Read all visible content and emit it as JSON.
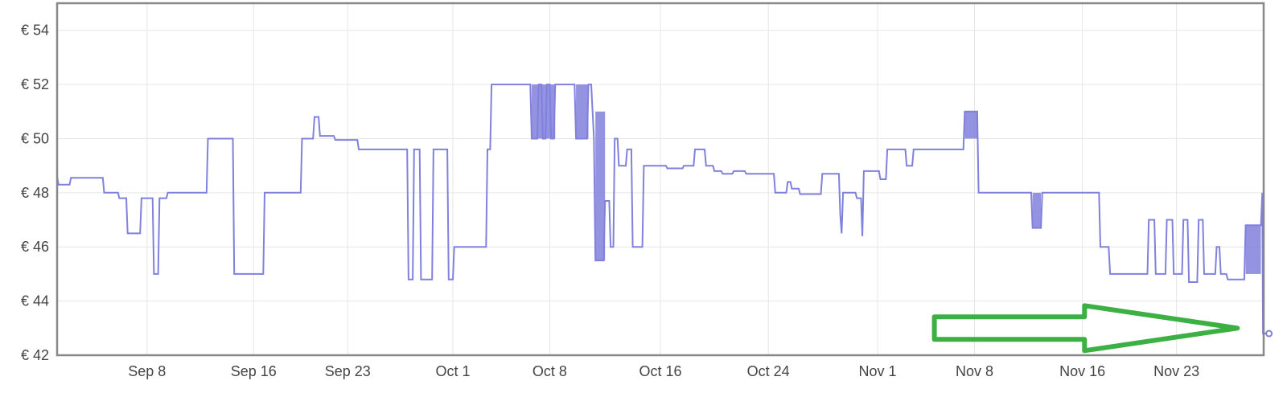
{
  "chart_data": {
    "type": "line",
    "title": "",
    "xlabel": "",
    "ylabel": "",
    "y_currency": "€",
    "ylim": [
      42,
      55
    ],
    "yticks": [
      42,
      44,
      46,
      48,
      50,
      52,
      54
    ],
    "xlim": [
      0,
      87.2
    ],
    "x_ticks": [
      {
        "day": 6.5,
        "label": "Sep 8"
      },
      {
        "day": 14.2,
        "label": "Sep 16"
      },
      {
        "day": 21.0,
        "label": "Sep 23"
      },
      {
        "day": 28.6,
        "label": "Oct 1"
      },
      {
        "day": 35.6,
        "label": "Oct 8"
      },
      {
        "day": 43.6,
        "label": "Oct 16"
      },
      {
        "day": 51.4,
        "label": "Oct 24"
      },
      {
        "day": 59.3,
        "label": "Nov 1"
      },
      {
        "day": 66.3,
        "label": "Nov 8"
      },
      {
        "day": 74.1,
        "label": "Nov 16"
      },
      {
        "day": 80.9,
        "label": "Nov 23"
      }
    ],
    "grid": true,
    "legend": "none",
    "line_color": "#8080dd",
    "annotation_color": "#3cb043",
    "annotation": {
      "shape": "arrow",
      "direction": "right",
      "from": [
        63.4,
        43.0
      ],
      "to": [
        85.3,
        43.0
      ]
    },
    "series": [
      {
        "steps": [
          [
            0.0,
            48.6
          ],
          [
            0.1,
            48.3
          ],
          [
            0.9,
            48.3
          ],
          [
            1.0,
            48.55
          ],
          [
            3.3,
            48.55
          ],
          [
            3.4,
            48.0
          ],
          [
            4.4,
            48.0
          ],
          [
            4.5,
            47.8
          ],
          [
            5.0,
            47.8
          ],
          [
            5.1,
            46.5
          ],
          [
            6.0,
            46.5
          ],
          [
            6.1,
            47.8
          ],
          [
            6.9,
            47.8
          ],
          [
            7.0,
            45.0
          ],
          [
            7.3,
            45.0
          ],
          [
            7.4,
            47.8
          ],
          [
            7.9,
            47.8
          ],
          [
            8.0,
            48.0
          ],
          [
            10.8,
            48.0
          ],
          [
            10.9,
            50.0
          ],
          [
            12.7,
            50.0
          ],
          [
            12.8,
            45.0
          ],
          [
            14.9,
            45.0
          ],
          [
            15.0,
            48.0
          ],
          [
            17.6,
            48.0
          ],
          [
            17.7,
            50.0
          ],
          [
            18.5,
            50.0
          ],
          [
            18.6,
            50.8
          ],
          [
            18.9,
            50.8
          ],
          [
            19.0,
            50.1
          ],
          [
            20.0,
            50.1
          ],
          [
            20.1,
            49.95
          ],
          [
            21.7,
            49.95
          ],
          [
            21.8,
            49.6
          ],
          [
            25.3,
            49.6
          ],
          [
            25.4,
            44.8
          ],
          [
            25.7,
            44.8
          ],
          [
            25.8,
            49.6
          ],
          [
            26.2,
            49.6
          ],
          [
            26.3,
            44.8
          ],
          [
            27.1,
            44.8
          ],
          [
            27.2,
            49.6
          ],
          [
            28.2,
            49.6
          ],
          [
            28.3,
            44.8
          ],
          [
            28.6,
            44.8
          ],
          [
            28.7,
            46.0
          ],
          [
            31.0,
            46.0
          ],
          [
            31.1,
            49.6
          ],
          [
            31.3,
            49.6
          ],
          [
            31.4,
            52.0
          ],
          [
            34.2,
            52.0
          ],
          [
            34.3,
            50.0
          ],
          [
            34.7,
            50.0
          ],
          [
            34.8,
            52.0
          ],
          [
            35.0,
            52.0
          ],
          [
            35.1,
            50.0
          ],
          [
            35.3,
            50.0
          ],
          [
            35.4,
            52.0
          ],
          [
            35.6,
            52.0
          ],
          [
            35.7,
            50.0
          ],
          [
            35.9,
            50.0
          ],
          [
            36.0,
            52.0
          ],
          [
            37.4,
            52.0
          ],
          [
            37.5,
            50.0
          ],
          [
            38.3,
            50.0
          ],
          [
            38.4,
            52.0
          ],
          [
            38.6,
            52.0
          ],
          [
            38.7,
            51.0
          ],
          [
            38.8,
            50.0
          ],
          [
            38.9,
            45.5
          ],
          [
            39.5,
            45.5
          ],
          [
            39.6,
            47.7
          ],
          [
            39.9,
            47.7
          ],
          [
            40.0,
            46.0
          ],
          [
            40.2,
            46.0
          ],
          [
            40.3,
            50.0
          ],
          [
            40.5,
            50.0
          ],
          [
            40.6,
            49.0
          ],
          [
            41.1,
            49.0
          ],
          [
            41.2,
            49.6
          ],
          [
            41.5,
            49.6
          ],
          [
            41.6,
            46.0
          ],
          [
            42.3,
            46.0
          ],
          [
            42.4,
            49.0
          ],
          [
            44.0,
            49.0
          ],
          [
            44.1,
            48.9
          ],
          [
            45.2,
            48.9
          ],
          [
            45.3,
            49.0
          ],
          [
            46.0,
            49.0
          ],
          [
            46.1,
            49.6
          ],
          [
            46.8,
            49.6
          ],
          [
            46.9,
            49.0
          ],
          [
            47.4,
            49.0
          ],
          [
            47.5,
            48.8
          ],
          [
            48.0,
            48.8
          ],
          [
            48.1,
            48.7
          ],
          [
            48.8,
            48.7
          ],
          [
            48.9,
            48.8
          ],
          [
            49.7,
            48.8
          ],
          [
            49.8,
            48.7
          ],
          [
            51.8,
            48.7
          ],
          [
            51.9,
            48.0
          ],
          [
            52.7,
            48.0
          ],
          [
            52.8,
            48.4
          ],
          [
            53.0,
            48.4
          ],
          [
            53.1,
            48.15
          ],
          [
            53.6,
            48.15
          ],
          [
            53.7,
            47.95
          ],
          [
            55.2,
            47.95
          ],
          [
            55.3,
            48.7
          ],
          [
            56.5,
            48.7
          ],
          [
            56.6,
            47.2
          ],
          [
            56.7,
            46.5
          ],
          [
            56.8,
            48.0
          ],
          [
            57.7,
            48.0
          ],
          [
            57.8,
            47.8
          ],
          [
            58.1,
            47.8
          ],
          [
            58.2,
            46.4
          ],
          [
            58.3,
            48.8
          ],
          [
            59.4,
            48.8
          ],
          [
            59.5,
            48.5
          ],
          [
            59.9,
            48.5
          ],
          [
            60.0,
            49.6
          ],
          [
            61.3,
            49.6
          ],
          [
            61.4,
            49.0
          ],
          [
            61.8,
            49.0
          ],
          [
            61.9,
            49.6
          ],
          [
            65.5,
            49.6
          ],
          [
            65.6,
            51.0
          ],
          [
            66.5,
            51.0
          ],
          [
            66.6,
            48.0
          ],
          [
            70.4,
            48.0
          ],
          [
            70.5,
            46.7
          ],
          [
            71.1,
            46.7
          ],
          [
            71.2,
            48.0
          ],
          [
            75.3,
            48.0
          ],
          [
            75.4,
            46.0
          ],
          [
            76.0,
            46.0
          ],
          [
            76.1,
            45.0
          ],
          [
            78.8,
            45.0
          ],
          [
            78.9,
            47.0
          ],
          [
            79.3,
            47.0
          ],
          [
            79.4,
            45.0
          ],
          [
            80.1,
            45.0
          ],
          [
            80.2,
            47.0
          ],
          [
            80.6,
            47.0
          ],
          [
            80.7,
            45.0
          ],
          [
            81.3,
            45.0
          ],
          [
            81.4,
            47.0
          ],
          [
            81.7,
            47.0
          ],
          [
            81.8,
            44.7
          ],
          [
            82.4,
            44.7
          ],
          [
            82.5,
            47.0
          ],
          [
            82.8,
            47.0
          ],
          [
            82.9,
            45.0
          ],
          [
            83.7,
            45.0
          ],
          [
            83.8,
            46.0
          ],
          [
            84.0,
            46.0
          ],
          [
            84.1,
            45.0
          ],
          [
            84.5,
            45.0
          ],
          [
            84.6,
            44.8
          ],
          [
            85.8,
            44.8
          ],
          [
            85.9,
            46.8
          ],
          [
            87.0,
            46.8
          ],
          [
            87.1,
            48.0
          ],
          [
            87.15,
            42.8
          ],
          [
            87.7,
            42.8
          ]
        ],
        "dense_regions": [
          {
            "from": 34.3,
            "to": 36.0,
            "low": 50.0,
            "high": 52.0
          },
          {
            "from": 37.5,
            "to": 38.4,
            "low": 50.0,
            "high": 52.0
          },
          {
            "from": 38.9,
            "to": 39.6,
            "low": 45.5,
            "high": 51.0
          },
          {
            "from": 65.6,
            "to": 66.5,
            "low": 50.0,
            "high": 51.0
          },
          {
            "from": 70.5,
            "to": 71.1,
            "low": 46.7,
            "high": 48.0
          },
          {
            "from": 85.9,
            "to": 87.0,
            "low": 45.0,
            "high": 46.8
          }
        ]
      }
    ]
  }
}
